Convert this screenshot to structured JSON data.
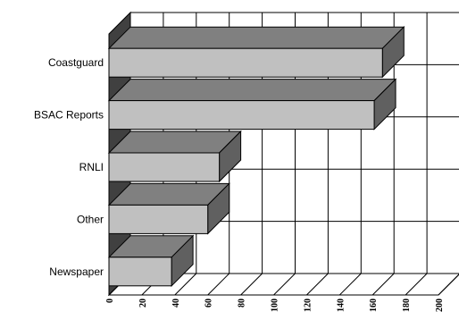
{
  "chart_data": {
    "type": "bar",
    "orientation": "horizontal",
    "three_d": true,
    "categories": [
      "Newspaper",
      "Other",
      "RNLI",
      "BSAC Reports",
      "Coastguard"
    ],
    "values": [
      38,
      60,
      67,
      161,
      166
    ],
    "x_ticks": [
      "0",
      "20",
      "40",
      "60",
      "80",
      "100",
      "120",
      "140",
      "160",
      "180",
      "200"
    ],
    "xlim": [
      0,
      200
    ],
    "grid": true,
    "legend": false,
    "colors": {
      "bar_front": "#c0c0c0",
      "bar_top": "#808080",
      "bar_side": "#606060",
      "left_wall": "#404040",
      "grid": "#000000"
    }
  }
}
